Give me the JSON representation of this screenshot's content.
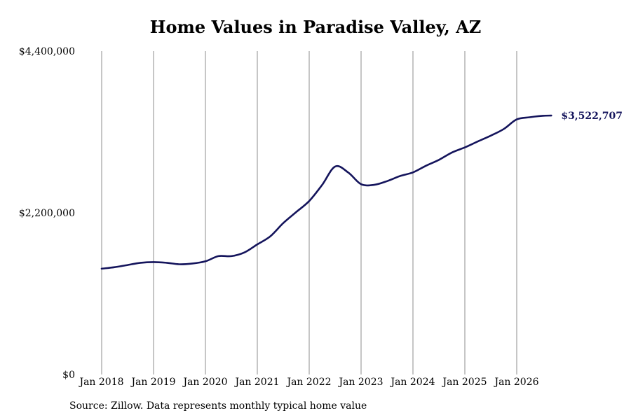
{
  "chart_data": {
    "type": "line",
    "title": "Home Values in Paradise Valley, AZ",
    "xlabel": "",
    "ylabel": "",
    "ylim": [
      0,
      4400000
    ],
    "y_ticks": [
      {
        "value": 0,
        "label": "$0"
      },
      {
        "value": 2200000,
        "label": "$2,200,000"
      },
      {
        "value": 4400000,
        "label": "$4,400,000"
      }
    ],
    "x_ticks": [
      "Jan 2018",
      "Jan 2019",
      "Jan 2020",
      "Jan 2021",
      "Jan 2022",
      "Jan 2023",
      "Jan 2024",
      "Jan 2025",
      "Jan 2026"
    ],
    "grid": "vertical lines at each January",
    "series": [
      {
        "color": "#14145c",
        "x": [
          "2018-01",
          "2018-04",
          "2018-07",
          "2018-10",
          "2019-01",
          "2019-04",
          "2019-07",
          "2019-10",
          "2020-01",
          "2020-04",
          "2020-07",
          "2020-10",
          "2021-01",
          "2021-04",
          "2021-07",
          "2021-10",
          "2022-01",
          "2022-04",
          "2022-07",
          "2022-10",
          "2023-01",
          "2023-04",
          "2023-07",
          "2023-10",
          "2024-01",
          "2024-04",
          "2024-07",
          "2024-10",
          "2025-01",
          "2025-04",
          "2025-07",
          "2025-10",
          "2026-01",
          "2026-04",
          "2026-07",
          "2026-09"
        ],
        "values": [
          1440000,
          1460000,
          1490000,
          1520000,
          1530000,
          1520000,
          1500000,
          1510000,
          1540000,
          1610000,
          1610000,
          1660000,
          1770000,
          1880000,
          2060000,
          2210000,
          2360000,
          2580000,
          2830000,
          2750000,
          2590000,
          2580000,
          2630000,
          2700000,
          2750000,
          2840000,
          2920000,
          3020000,
          3090000,
          3170000,
          3250000,
          3340000,
          3470000,
          3500000,
          3520000,
          3522707
        ]
      }
    ],
    "end_label": "$3,522,707",
    "source": "Source: Zillow. Data represents monthly typical home value"
  }
}
